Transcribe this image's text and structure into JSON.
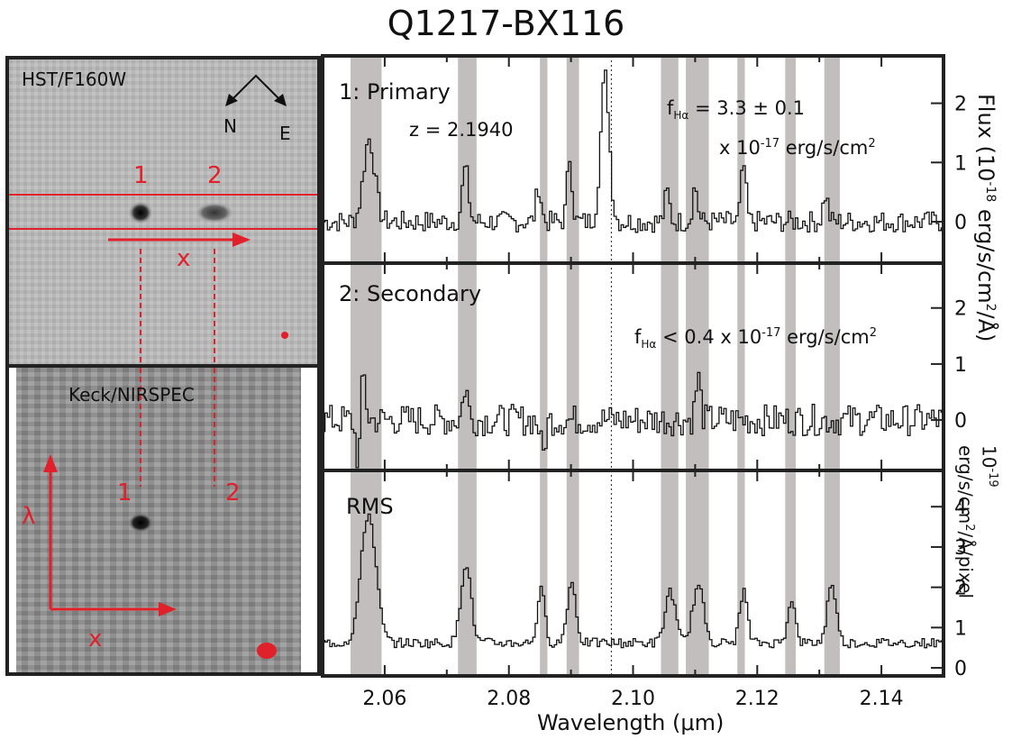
{
  "figure": {
    "title": "Q1217-BX116",
    "colors": {
      "red": "#e0202a",
      "band": "#c3bebe",
      "frame": "#222222"
    }
  },
  "hst_panel": {
    "label": "HST/F160W",
    "compass_north": "N",
    "compass_east": "E",
    "source_labels": [
      "1",
      "2"
    ],
    "x_arrow_label": "x"
  },
  "nirspec_panel": {
    "label": "Keck/NIRSPEC",
    "source_labels": [
      "1",
      "2"
    ],
    "lambda_label": "λ",
    "x_label": "x"
  },
  "chart_data": [
    {
      "type": "line",
      "panel": "primary",
      "title": "1: Primary",
      "annotations": [
        "z = 2.1940",
        "f",
        "Hα",
        " = 3.3 ± 0.1",
        "x 10",
        "-17",
        " erg/s/cm",
        "2"
      ],
      "xlim": [
        2.05,
        2.15
      ],
      "ylim": [
        -0.7,
        2.8
      ],
      "yticks": [
        0,
        1,
        2
      ],
      "ylabel": {
        "main": "Flux (10",
        "exp": "-18",
        "mid": " erg/s/cm",
        "sq": "2",
        "end": "/Å)"
      },
      "spikes": [
        {
          "x": 2.0575,
          "y": 1.4,
          "w": 0.0009
        },
        {
          "x": 2.073,
          "y": 0.9,
          "w": 0.0005
        },
        {
          "x": 2.0848,
          "y": 0.6,
          "w": 0.0004
        },
        {
          "x": 2.0898,
          "y": 1.1,
          "w": 0.0004
        },
        {
          "x": 2.0955,
          "y": 2.45,
          "w": 0.0007
        },
        {
          "x": 2.1055,
          "y": 0.5,
          "w": 0.0004
        },
        {
          "x": 2.11,
          "y": 0.6,
          "w": 0.0004
        },
        {
          "x": 2.1178,
          "y": 0.95,
          "w": 0.0004
        },
        {
          "x": 2.131,
          "y": 0.45,
          "w": 0.0004
        }
      ],
      "noise": 0.18,
      "baseline": 0.0,
      "dotted_line_x": 2.0965
    },
    {
      "type": "line",
      "panel": "secondary",
      "title": "2: Secondary",
      "annotations": [
        "f",
        "Hα",
        " < 0.4 x 10",
        "-17",
        " erg/s/cm",
        "2"
      ],
      "xlim": [
        2.05,
        2.15
      ],
      "ylim": [
        -0.9,
        2.8
      ],
      "yticks": [
        0,
        1,
        2
      ],
      "spikes": [
        {
          "x": 2.0565,
          "y": 0.95,
          "w": 0.0004
        },
        {
          "x": 2.0558,
          "y": -0.9,
          "w": 0.0004
        },
        {
          "x": 2.073,
          "y": 0.6,
          "w": 0.0004
        },
        {
          "x": 2.0855,
          "y": -0.6,
          "w": 0.0004
        },
        {
          "x": 2.1105,
          "y": 0.75,
          "w": 0.0004
        }
      ],
      "noise": 0.28,
      "baseline": 0.0,
      "dotted_line_x": 2.0965
    },
    {
      "type": "line",
      "panel": "rms",
      "title": "RMS",
      "xlim": [
        2.05,
        2.15
      ],
      "ylim": [
        -0.2,
        4.9
      ],
      "yticks": [
        0,
        1,
        2,
        3,
        4
      ],
      "xticks": [
        2.06,
        2.08,
        2.1,
        2.12,
        2.14
      ],
      "xtick_labels": [
        "2.06",
        "2.08",
        "2.10",
        "2.12",
        "2.14"
      ],
      "xlabel": "Wavelength (μm)",
      "ylabel": {
        "pre": "10",
        "exp": "-19",
        "line2": "erg/s/cm",
        "sq": "2",
        "end": "/Å/pixel"
      },
      "spikes": [
        {
          "x": 2.0574,
          "y": 3.2,
          "w": 0.0012
        },
        {
          "x": 2.0731,
          "y": 2.0,
          "w": 0.0008
        },
        {
          "x": 2.0852,
          "y": 1.3,
          "w": 0.0006
        },
        {
          "x": 2.0901,
          "y": 1.5,
          "w": 0.0007
        },
        {
          "x": 2.106,
          "y": 1.3,
          "w": 0.0008
        },
        {
          "x": 2.1105,
          "y": 1.4,
          "w": 0.0009
        },
        {
          "x": 2.1178,
          "y": 1.3,
          "w": 0.0006
        },
        {
          "x": 2.1255,
          "y": 1.1,
          "w": 0.0006
        },
        {
          "x": 2.132,
          "y": 1.5,
          "w": 0.0007
        }
      ],
      "noise": 0.12,
      "baseline": 0.5,
      "dotted_line_x": 2.0965
    }
  ],
  "bands": [
    [
      2.0545,
      2.0595
    ],
    [
      2.0718,
      2.0748
    ],
    [
      2.085,
      2.0862
    ],
    [
      2.0893,
      2.0913
    ],
    [
      2.1045,
      2.1073
    ],
    [
      2.1085,
      2.1122
    ],
    [
      2.1168,
      2.118
    ],
    [
      2.1245,
      2.1262
    ],
    [
      2.1308,
      2.1333
    ]
  ]
}
